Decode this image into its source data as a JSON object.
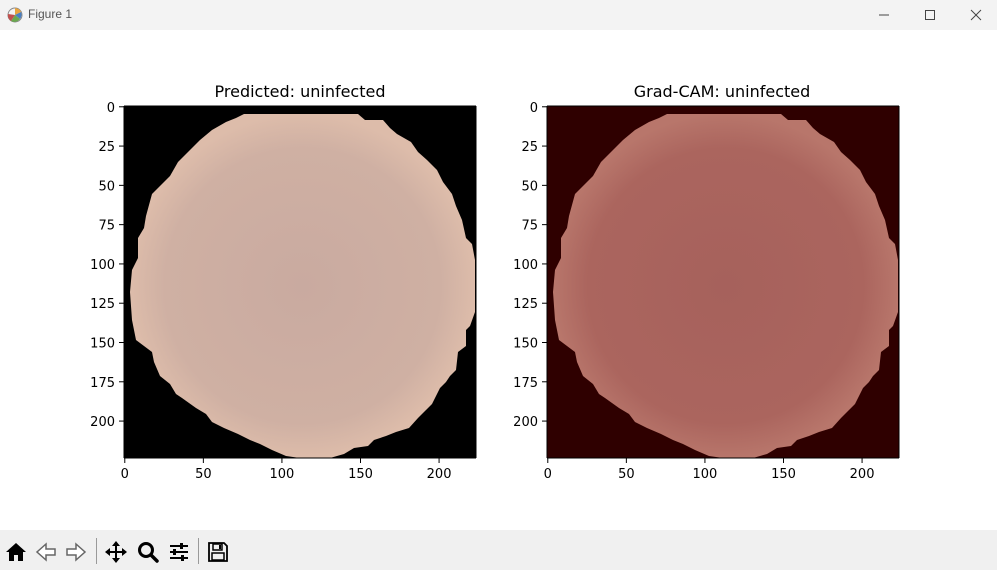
{
  "window": {
    "title": "Figure 1"
  },
  "plots": [
    {
      "title": "Predicted: uninfected",
      "xticks": [
        "0",
        "50",
        "100",
        "150",
        "200"
      ],
      "yticks": [
        "0",
        "25",
        "50",
        "75",
        "100",
        "125",
        "150",
        "175",
        "200"
      ],
      "background": "#000000",
      "cell_fill": "#ccab9f",
      "cell_edge": "#dcbba9"
    },
    {
      "title": "Grad-CAM: uninfected",
      "xticks": [
        "0",
        "50",
        "100",
        "150",
        "200"
      ],
      "yticks": [
        "0",
        "25",
        "50",
        "75",
        "100",
        "125",
        "150",
        "175",
        "200"
      ],
      "background": "#2f0000",
      "cell_fill": "#a8615b",
      "cell_edge": "#b5726a"
    }
  ],
  "toolbar": {
    "buttons": [
      "home-icon",
      "back-icon",
      "forward-icon",
      "pan-icon",
      "zoom-icon",
      "configure-subplots-icon",
      "save-icon"
    ]
  }
}
